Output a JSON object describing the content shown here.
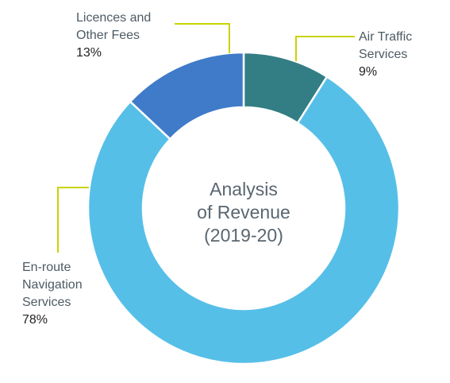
{
  "chart_data": {
    "type": "pie",
    "title": "Analysis of Revenue (2019-20)",
    "title_lines": [
      "Analysis",
      "of Revenue",
      "(2019-20)"
    ],
    "donut": true,
    "slices": [
      {
        "name": "Air Traffic Services",
        "label_lines": [
          "Air Traffic",
          "Services"
        ],
        "value": 9,
        "value_label": "9%",
        "color": "#337e84"
      },
      {
        "name": "En-route Navigation Services",
        "label_lines": [
          "En-route",
          "Navigation",
          "Services"
        ],
        "value": 78,
        "value_label": "78%",
        "color": "#56bfe8"
      },
      {
        "name": "Licences and Other Fees",
        "label_lines": [
          "Licences and",
          "Other Fees"
        ],
        "value": 13,
        "value_label": "13%",
        "color": "#3f7bc8"
      }
    ],
    "start_angle": "12 o'clock",
    "direction": "clockwise",
    "leader_line_color": "#c8d400",
    "legend": "none"
  }
}
